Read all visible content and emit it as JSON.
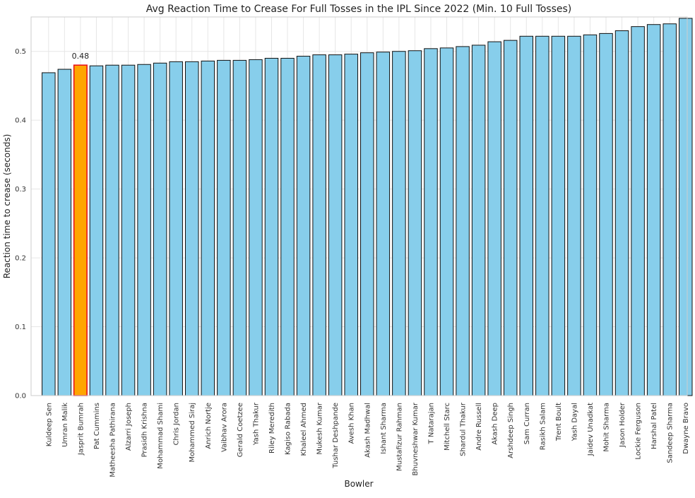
{
  "chart_data": {
    "type": "bar",
    "title": "Avg Reaction Time to Crease For Full Tosses in the IPL Since 2022 (Min. 10 Full Tosses)",
    "xlabel": "Bowler",
    "ylabel": "Reaction time to crease (seconds)",
    "ylim": [
      0,
      0.55
    ],
    "yticks": [
      "0.0",
      "0.1",
      "0.2",
      "0.3",
      "0.4",
      "0.5"
    ],
    "grid": true,
    "colors": {
      "bar": "#87CEEB",
      "bar_edge": "#111111",
      "highlight": "#FFA500",
      "highlight_edge": "#E8141B",
      "grid": "#E6E6E6",
      "frame": "#CCCCCC"
    },
    "highlight_index": 2,
    "annotation": {
      "text": "0.48",
      "index": 2
    },
    "categories": [
      "Kuldeep Sen",
      "Umran Malik",
      "Jasprit Bumrah",
      "Pat Cummins",
      "Matheesha Pathirana",
      "Alzarri Joseph",
      "Prasidh Krishna",
      "Mohammad Shami",
      "Chris Jordan",
      "Mohammed Siraj",
      "Anrich Nortje",
      "Vaibhav Arora",
      "Gerald Coetzee",
      "Yash Thakur",
      "Riley Meredith",
      "Kagiso Rabada",
      "Khaleel Ahmed",
      "Mukesh Kumar",
      "Tushar Deshpande",
      "Avesh Khan",
      "Akash Madhwal",
      "Ishant Sharma",
      "Mustafizur Rahman",
      "Bhuvneshwar Kumar",
      "T Natarajan",
      "Mitchell Starc",
      "Shardul Thakur",
      "Andre Russell",
      "Akash Deep",
      "Arshdeep Singh",
      "Sam Curran",
      "Rasikh Salam",
      "Trent Boult",
      "Yash Dayal",
      "Jaidev Unadkat",
      "Mohit Sharma",
      "Jason Holder",
      "Lockie Ferguson",
      "Harshal Patel",
      "Sandeep Sharma",
      "Dwayne Bravo"
    ],
    "values": [
      0.469,
      0.474,
      0.48,
      0.479,
      0.48,
      0.48,
      0.481,
      0.483,
      0.485,
      0.485,
      0.486,
      0.487,
      0.487,
      0.488,
      0.49,
      0.49,
      0.493,
      0.495,
      0.495,
      0.496,
      0.498,
      0.499,
      0.5,
      0.501,
      0.504,
      0.505,
      0.507,
      0.509,
      0.514,
      0.516,
      0.522,
      0.522,
      0.522,
      0.522,
      0.524,
      0.526,
      0.53,
      0.536,
      0.539,
      0.54,
      0.548
    ]
  }
}
